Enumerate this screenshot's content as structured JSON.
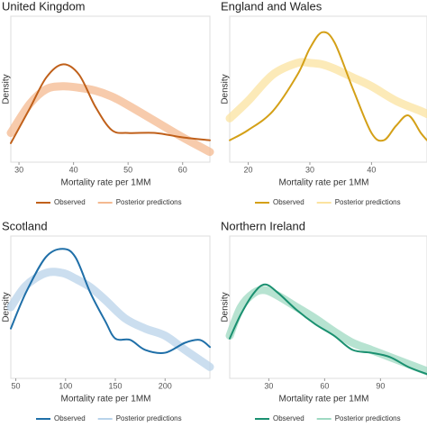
{
  "chart_data": [
    {
      "type": "line",
      "title": "United Kingdom",
      "xlabel": "Mortality rate per 1MM",
      "ylabel": "Density",
      "legend": "bottom",
      "xlim": [
        28.5,
        65
      ],
      "xticks": [
        30,
        40,
        50,
        60
      ],
      "ylim": [
        0,
        1
      ],
      "series": [
        {
          "name": "Observed",
          "color": "#c0601a",
          "x": [
            28.5,
            32,
            35,
            38,
            41,
            44,
            47,
            50,
            55,
            60,
            65
          ],
          "values": [
            0.13,
            0.37,
            0.58,
            0.67,
            0.6,
            0.38,
            0.22,
            0.2,
            0.2,
            0.17,
            0.15
          ]
        },
        {
          "name": "Posterior predictions",
          "color": "#f4b990",
          "x": [
            28.5,
            32,
            35,
            38,
            41,
            44,
            47,
            50,
            55,
            60,
            65
          ],
          "values": [
            0.2,
            0.4,
            0.5,
            0.52,
            0.51,
            0.49,
            0.45,
            0.39,
            0.28,
            0.17,
            0.07
          ]
        }
      ]
    },
    {
      "type": "line",
      "title": "England and Wales",
      "xlabel": "Mortality rate per 1MM",
      "ylabel": "Density",
      "legend": "bottom",
      "xlim": [
        17,
        49
      ],
      "xticks": [
        20,
        30,
        40
      ],
      "ylim": [
        0,
        1
      ],
      "series": [
        {
          "name": "Observed",
          "color": "#d4a017",
          "x": [
            17,
            20,
            24,
            28,
            30,
            32,
            34,
            37,
            40,
            42,
            44,
            46,
            48,
            49
          ],
          "values": [
            0.15,
            0.22,
            0.35,
            0.6,
            0.78,
            0.89,
            0.82,
            0.5,
            0.2,
            0.15,
            0.25,
            0.32,
            0.2,
            0.15
          ]
        },
        {
          "name": "Posterior predictions",
          "color": "#fbe3a0",
          "x": [
            17,
            20,
            24,
            28,
            30,
            32,
            34,
            37,
            40,
            44,
            48,
            49
          ],
          "values": [
            0.3,
            0.42,
            0.6,
            0.68,
            0.68,
            0.67,
            0.64,
            0.58,
            0.52,
            0.42,
            0.35,
            0.33
          ]
        }
      ]
    },
    {
      "type": "line",
      "title": "Scotland",
      "xlabel": "Mortality rate per 1MM",
      "ylabel": "Density",
      "legend": "bottom",
      "xlim": [
        45,
        245
      ],
      "xticks": [
        50,
        100,
        150,
        200
      ],
      "ylim": [
        0,
        1
      ],
      "series": [
        {
          "name": "Observed",
          "color": "#1f6fa8",
          "x": [
            45,
            60,
            80,
            97,
            110,
            125,
            140,
            150,
            165,
            180,
            200,
            220,
            235,
            245
          ],
          "values": [
            0.35,
            0.6,
            0.85,
            0.91,
            0.85,
            0.6,
            0.4,
            0.28,
            0.27,
            0.2,
            0.18,
            0.25,
            0.27,
            0.22
          ]
        },
        {
          "name": "Posterior predictions",
          "color": "#b9d3ea",
          "x": [
            45,
            60,
            80,
            97,
            110,
            125,
            140,
            160,
            180,
            200,
            220,
            245
          ],
          "values": [
            0.5,
            0.65,
            0.74,
            0.74,
            0.7,
            0.64,
            0.55,
            0.42,
            0.35,
            0.3,
            0.2,
            0.08
          ]
        }
      ]
    },
    {
      "type": "line",
      "title": "Northern Ireland",
      "xlabel": "Mortality rate per 1MM",
      "ylabel": "Density",
      "legend": "bottom",
      "xlim": [
        9,
        115
      ],
      "xticks": [
        30,
        60,
        90
      ],
      "ylim": [
        0,
        1
      ],
      "series": [
        {
          "name": "Observed",
          "color": "#1a9070",
          "x": [
            9,
            15,
            22,
            28,
            35,
            45,
            55,
            65,
            75,
            85,
            95,
            105,
            115
          ],
          "values": [
            0.28,
            0.45,
            0.6,
            0.66,
            0.6,
            0.48,
            0.38,
            0.3,
            0.2,
            0.18,
            0.15,
            0.08,
            0.03
          ]
        },
        {
          "name": "Posterior predictions",
          "color": "#9fd9c2",
          "x": [
            9,
            15,
            22,
            28,
            35,
            45,
            55,
            65,
            75,
            85,
            95,
            105,
            115
          ],
          "values": [
            0.3,
            0.5,
            0.6,
            0.62,
            0.58,
            0.5,
            0.42,
            0.33,
            0.25,
            0.2,
            0.15,
            0.1,
            0.05
          ]
        }
      ]
    }
  ]
}
